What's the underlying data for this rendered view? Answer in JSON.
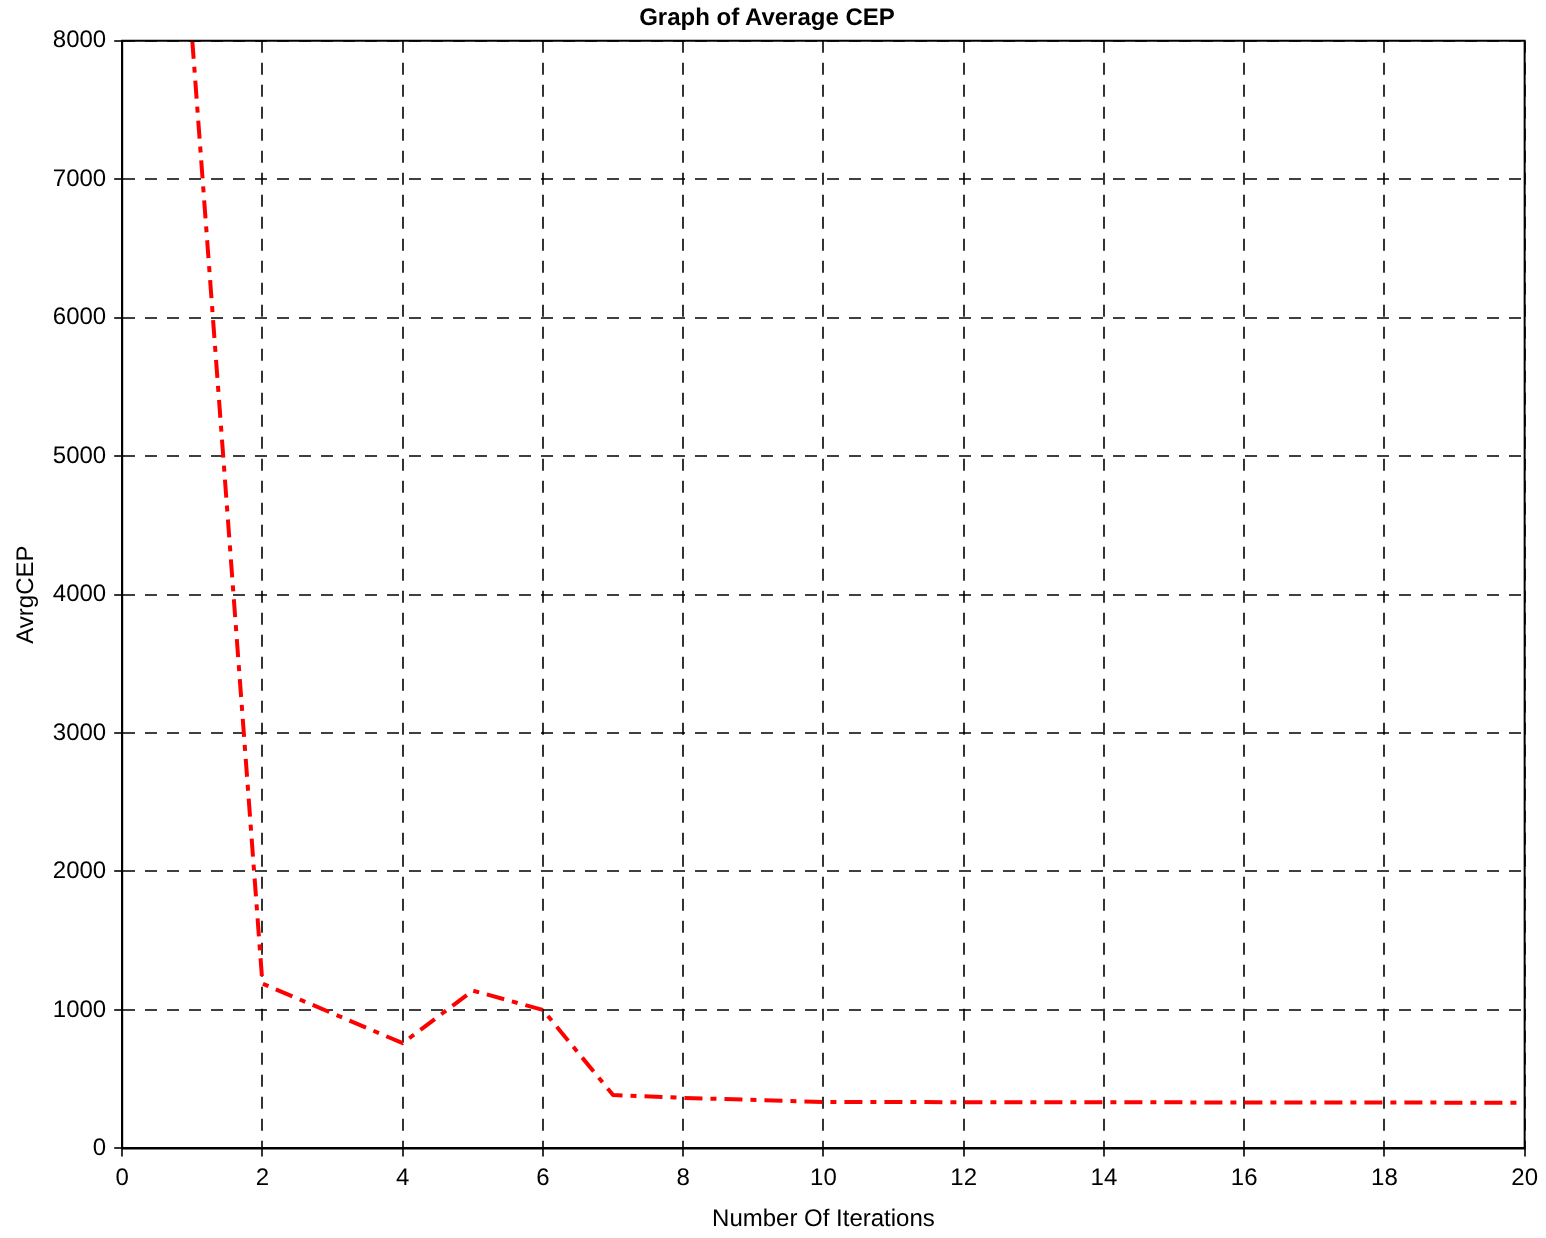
{
  "chart_data": {
    "type": "line",
    "title": "Graph of Average CEP",
    "xlabel": "Number Of Iterations",
    "ylabel": "AvrgCEP",
    "x": [
      1,
      2,
      4,
      5,
      6,
      7,
      8,
      10,
      20
    ],
    "series": [
      {
        "color": "#ff0000",
        "values": [
          8000,
          1190,
          760,
          1140,
          1000,
          385,
          365,
          335,
          330
        ]
      }
    ],
    "xlim": [
      0,
      20
    ],
    "xticks": [
      0,
      2,
      4,
      6,
      8,
      10,
      12,
      14,
      16,
      18,
      20
    ],
    "ylim": [
      0,
      8000
    ],
    "yticks": [
      0,
      1000,
      2000,
      3000,
      4000,
      5000,
      6000,
      7000,
      8000
    ],
    "grid": true,
    "legend": false,
    "marker": "none",
    "line_style": "dashed"
  }
}
